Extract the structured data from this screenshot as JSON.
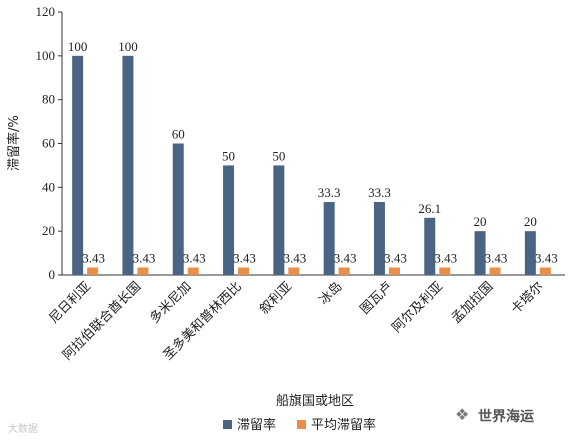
{
  "chart_data": {
    "type": "bar",
    "ylabel": "滞留率/%",
    "xlabel": "船旗国或地区",
    "ylim": [
      0,
      120
    ],
    "yticks": [
      0,
      20,
      40,
      60,
      80,
      100,
      120
    ],
    "categories": [
      "尼日利亚",
      "阿拉伯联合酋长国",
      "多米尼加",
      "圣多美和普林西比",
      "叙利亚",
      "冰岛",
      "图瓦卢",
      "阿尔及利亚",
      "孟加拉国",
      "卡塔尔"
    ],
    "series": [
      {
        "name": "滞留率",
        "color": "#4a6584",
        "values": [
          100,
          100,
          60,
          50,
          50,
          33.3,
          33.3,
          26.1,
          20,
          20
        ],
        "labels": [
          "100",
          "100",
          "60",
          "50",
          "50",
          "33.3",
          "33.3",
          "26.1",
          "20",
          "20"
        ]
      },
      {
        "name": "平均滞留率",
        "color": "#e8904a",
        "values": [
          3.43,
          3.43,
          3.43,
          3.43,
          3.43,
          3.43,
          3.43,
          3.43,
          3.43,
          3.43
        ],
        "labels": [
          "3.43",
          "3.43",
          "3.43",
          "3.43",
          "3.43",
          "3.43",
          "3.43",
          "3.43",
          "3.43",
          "3.43"
        ]
      }
    ],
    "legend_position": "bottom-center",
    "grid": false
  },
  "watermark": {
    "left": "大数据",
    "right": "世界海运"
  }
}
